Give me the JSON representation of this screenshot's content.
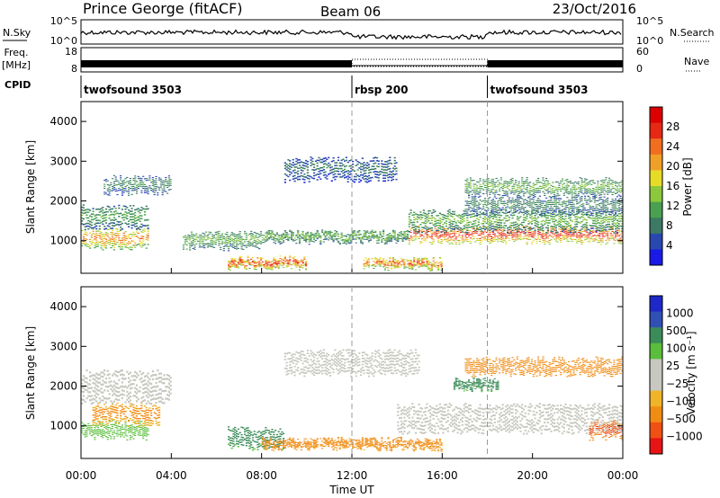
{
  "header": {
    "station": "Prince George (fitACF)",
    "beam": "Beam 06",
    "date": "23/Oct/2016"
  },
  "sky_panel": {
    "left_label": "N.Sky",
    "tick_top": "10^5",
    "tick_bottom": "10^0",
    "right_tick_top": "10^5",
    "right_tick_bottom": "10^0",
    "right_label": "N.Search"
  },
  "freq_panel": {
    "left_label_1": "Freq.",
    "left_label_2": "[MHz]",
    "tick_top": "18",
    "tick_bottom": "8",
    "right_tick_top": "60",
    "right_tick_bottom": "0",
    "right_label": "Nave"
  },
  "cpid": {
    "label": "CPID",
    "segments": [
      {
        "name": "twofsound 3503",
        "start_hour": 0
      },
      {
        "name": "rbsp 200",
        "start_hour": 12
      },
      {
        "name": "twofsound 3503",
        "start_hour": 18
      }
    ]
  },
  "x_axis": {
    "title": "Time UT",
    "ticks": [
      "00:00",
      "04:00",
      "08:00",
      "12:00",
      "16:00",
      "20:00",
      "00:00"
    ]
  },
  "colors": {
    "power": [
      "#1a1ae6",
      "#2848b0",
      "#3c7a64",
      "#4aa050",
      "#8cc83c",
      "#e6dc28",
      "#f0a028",
      "#f06e1e",
      "#e62814",
      "#dc0000"
    ],
    "velocity": [
      "#1e28c8",
      "#3050b4",
      "#3c8c5a",
      "#5abe3c",
      "#c8c8c0",
      "#c8c8c0",
      "#f0b428",
      "#f08c14",
      "#f05014",
      "#e61414"
    ]
  },
  "chart_data": [
    {
      "type": "heatmap",
      "name": "power",
      "ylabel": "Slant Range [km]",
      "xlabel": "Time UT",
      "xlim_hours": [
        0,
        24
      ],
      "ylim": [
        180,
        4500
      ],
      "yticks": [
        "1000",
        "2000",
        "3000",
        "4000"
      ],
      "colorbar": {
        "title": "Power [dB]",
        "ticks": [
          "4",
          "8",
          "12",
          "16",
          "20",
          "24",
          "28"
        ],
        "range": [
          0,
          32
        ]
      },
      "features": [
        {
          "t_start": 0,
          "t_end": 3,
          "range_center": 1050,
          "half_width": 220,
          "value": 24
        },
        {
          "t_start": 0,
          "t_end": 3,
          "range_center": 1600,
          "half_width": 280,
          "value": 12
        },
        {
          "t_start": 1,
          "t_end": 4,
          "range_center": 2400,
          "half_width": 200,
          "value": 10
        },
        {
          "t_start": 4.5,
          "t_end": 8,
          "range_center": 1000,
          "half_width": 200,
          "value": 14
        },
        {
          "t_start": 6.5,
          "t_end": 10,
          "range_center": 450,
          "half_width": 120,
          "value": 28
        },
        {
          "t_start": 8,
          "t_end": 14.5,
          "range_center": 1100,
          "half_width": 120,
          "value": 14
        },
        {
          "t_start": 9,
          "t_end": 14,
          "range_center": 2800,
          "half_width": 280,
          "value": 8
        },
        {
          "t_start": 12.5,
          "t_end": 16,
          "range_center": 420,
          "half_width": 120,
          "value": 26
        },
        {
          "t_start": 14.5,
          "t_end": 24,
          "range_center": 1150,
          "half_width": 180,
          "value": 30
        },
        {
          "t_start": 14.5,
          "t_end": 24,
          "range_center": 1500,
          "half_width": 250,
          "value": 14
        },
        {
          "t_start": 17,
          "t_end": 24,
          "range_center": 2350,
          "half_width": 200,
          "value": 14
        },
        {
          "t_start": 17,
          "t_end": 24,
          "range_center": 1900,
          "half_width": 200,
          "value": 10
        }
      ]
    },
    {
      "type": "heatmap",
      "name": "velocity",
      "ylabel": "Slant Range [km]",
      "xlabel": "Time UT",
      "xlim_hours": [
        0,
        24
      ],
      "ylim": [
        180,
        4500
      ],
      "yticks": [
        "1000",
        "2000",
        "3000",
        "4000"
      ],
      "colorbar": {
        "title": "Velocity [m s⁻¹]",
        "ticks": [
          "1000",
          "500",
          "100",
          "25",
          "−25",
          "−100",
          "−500",
          "−1000"
        ]
      },
      "features": [
        {
          "t_start": 0,
          "t_end": 3,
          "range_center": 900,
          "half_width": 200,
          "value": 60
        },
        {
          "t_start": 0.5,
          "t_end": 3.5,
          "range_center": 1300,
          "half_width": 250,
          "value": -150
        },
        {
          "t_start": 0,
          "t_end": 4,
          "range_center": 2000,
          "half_width": 400,
          "value": 0
        },
        {
          "t_start": 6.5,
          "t_end": 9,
          "range_center": 700,
          "half_width": 250,
          "value": 200
        },
        {
          "t_start": 8,
          "t_end": 16,
          "range_center": 550,
          "half_width": 120,
          "value": -200
        },
        {
          "t_start": 9,
          "t_end": 15,
          "range_center": 2600,
          "half_width": 300,
          "value": 0
        },
        {
          "t_start": 14,
          "t_end": 24,
          "range_center": 1200,
          "half_width": 350,
          "value": 0
        },
        {
          "t_start": 17,
          "t_end": 24,
          "range_center": 2500,
          "half_width": 200,
          "value": -300
        },
        {
          "t_start": 16.5,
          "t_end": 18.5,
          "range_center": 2050,
          "half_width": 120,
          "value": 200
        },
        {
          "t_start": 22.5,
          "t_end": 24,
          "range_center": 900,
          "half_width": 200,
          "value": -700
        }
      ]
    }
  ]
}
